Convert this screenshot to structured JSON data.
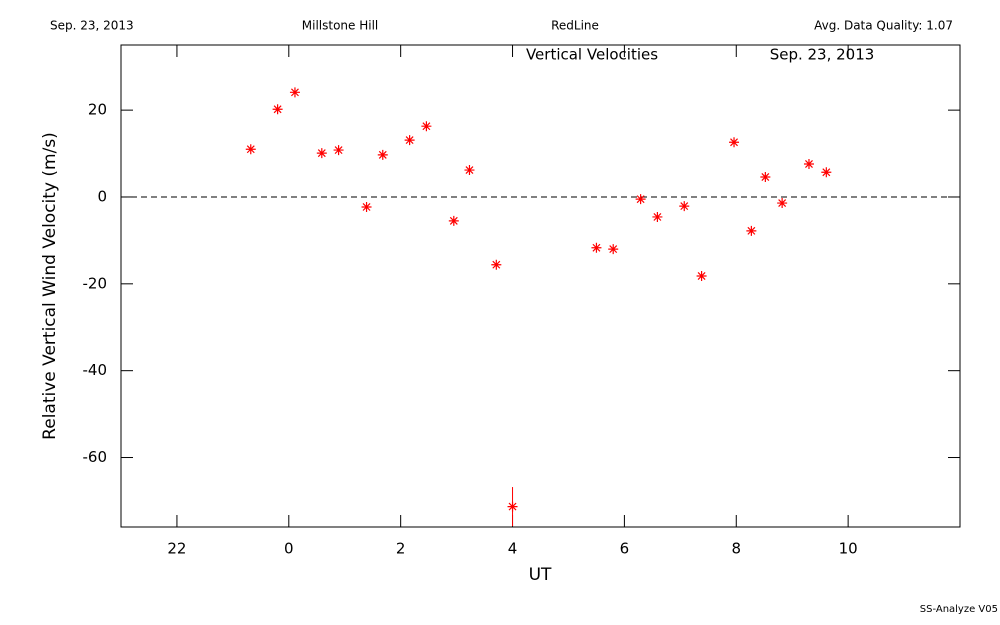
{
  "header": {
    "date": "Sep. 23, 2013",
    "site": "Millstone Hill",
    "line": "RedLine",
    "quality": "Avg. Data Quality: 1.07"
  },
  "footer": "SS-Analyze V05",
  "chart_data": {
    "type": "scatter",
    "title": "Vertical Velocities",
    "subtitle": "Sep. 23, 2013",
    "x_label": "UT",
    "y_label": "Relative Vertical Wind Velocity (m/s)",
    "xlim": [
      -3,
      12
    ],
    "ylim": [
      -76,
      35
    ],
    "xticks": [
      {
        "value": -2,
        "label": "22"
      },
      0,
      2,
      4,
      6,
      8,
      10
    ],
    "yticks": [
      -60,
      -40,
      -20,
      0,
      20
    ],
    "hline": 0,
    "color": "#ff0000",
    "x": [
      -0.68,
      -0.2,
      0.11,
      0.59,
      0.89,
      1.39,
      1.68,
      2.16,
      2.46,
      2.95,
      3.23,
      3.71,
      4.0,
      5.5,
      5.8,
      6.29,
      6.59,
      7.07,
      7.38,
      7.96,
      8.27,
      8.52,
      8.82,
      9.3,
      9.61
    ],
    "values": [
      11.0,
      20.2,
      24.1,
      10.1,
      10.8,
      -2.3,
      9.7,
      13.1,
      16.3,
      -5.5,
      6.2,
      -15.6,
      -71.3,
      -11.7,
      -12.0,
      -0.5,
      -4.6,
      -2.1,
      -18.2,
      12.6,
      -7.8,
      4.6,
      -1.4,
      7.6,
      5.7
    ],
    "errors": [
      null,
      null,
      null,
      null,
      null,
      null,
      null,
      null,
      null,
      null,
      null,
      null,
      4.5,
      null,
      null,
      null,
      null,
      null,
      null,
      null,
      null,
      null,
      null,
      null,
      null
    ]
  }
}
